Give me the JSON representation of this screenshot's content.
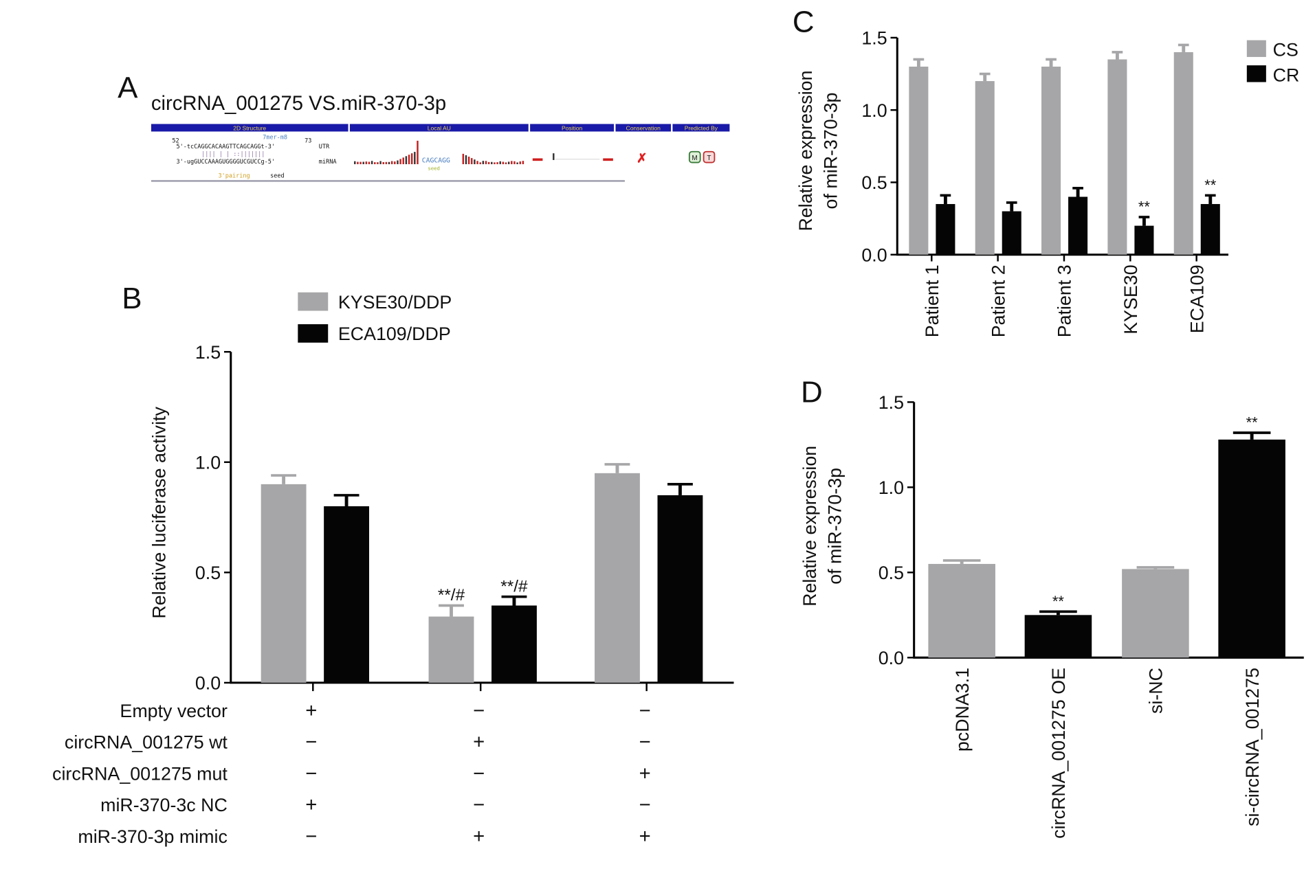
{
  "colors": {
    "gray": "#a6a6a8",
    "black": "#050505",
    "header_blue": "#1a1aa8"
  },
  "panelA": {
    "letter": "A",
    "title": "circRNA_001275 VS.miR-370-3p",
    "headers": [
      "2D Structure",
      "Local AU",
      "Position",
      "Conservation",
      "Predicted By"
    ],
    "start": "52",
    "end": "73",
    "site_type": "7mer-m8",
    "utr_seq": "5'-tcCAGGCACAAGTTCAGCAGGt-3'",
    "utr_label": "UTR",
    "pairing": "||||   |  | ::|||||||",
    "mirna_seq": "3'-ugGUCCAAAGUGGGGUCGUCCg-5'",
    "mirna_label": "miRNA",
    "pairing_label": "3'pairing",
    "seed_label": "seed",
    "au_seq": "CAGCAGG",
    "au_sub": "seed",
    "conservation_mark": "✗",
    "predicted_by": [
      "M",
      "T"
    ]
  },
  "chart_data": [
    {
      "panel": "B",
      "type": "bar",
      "ylabel": "Relative luciferase activity",
      "ylim": [
        0,
        1.5
      ],
      "yticks": [
        "0.0",
        "0.5",
        "1.0",
        "1.5"
      ],
      "legend_placement": "top",
      "series": [
        {
          "name": "KYSE30/DDP",
          "color": "#a6a6a8",
          "values": [
            0.9,
            0.3,
            0.95
          ],
          "errors": [
            0.04,
            0.05,
            0.04
          ],
          "annotations": [
            "",
            "**/#",
            ""
          ]
        },
        {
          "name": "ECA109/DDP",
          "color": "#050505",
          "values": [
            0.8,
            0.35,
            0.85
          ],
          "errors": [
            0.05,
            0.04,
            0.05
          ],
          "annotations": [
            "",
            "**/#",
            ""
          ]
        }
      ],
      "condition_table": {
        "rows": [
          {
            "label": "Empty vector",
            "values": [
              "+",
              "−",
              "−"
            ]
          },
          {
            "label": "circRNA_001275 wt",
            "values": [
              "−",
              "+",
              "−"
            ]
          },
          {
            "label": "circRNA_001275 mut",
            "values": [
              "−",
              "−",
              "+"
            ]
          },
          {
            "label": "miR-370-3c NC",
            "values": [
              "+",
              "−",
              "−"
            ]
          },
          {
            "label": "miR-370-3p mimic",
            "values": [
              "−",
              "+",
              "+"
            ]
          }
        ]
      }
    },
    {
      "panel": "C",
      "type": "bar",
      "ylabel": [
        "Relative expression",
        "of miR-370-3p"
      ],
      "ylim": [
        0,
        1.5
      ],
      "yticks": [
        "0.0",
        "0.5",
        "1.0",
        "1.5"
      ],
      "legend_placement": "top-right",
      "categories": [
        "Patient 1",
        "Patient 2",
        "Patient 3",
        "KYSE30",
        "ECA109"
      ],
      "series": [
        {
          "name": "CS",
          "color": "#a6a6a8",
          "values": [
            1.3,
            1.2,
            1.3,
            1.35,
            1.4
          ],
          "errors": [
            0.05,
            0.05,
            0.05,
            0.05,
            0.05
          ],
          "annotations": [
            "",
            "",
            "",
            "",
            ""
          ]
        },
        {
          "name": "CR",
          "color": "#050505",
          "values": [
            0.35,
            0.3,
            0.4,
            0.2,
            0.35
          ],
          "errors": [
            0.06,
            0.06,
            0.06,
            0.06,
            0.06
          ],
          "annotations": [
            "",
            "",
            "",
            "**",
            "**"
          ]
        }
      ]
    },
    {
      "panel": "D",
      "type": "bar",
      "ylabel": [
        "Relative expression",
        "of miR-370-3p"
      ],
      "ylim": [
        0,
        1.5
      ],
      "yticks": [
        "0.0",
        "0.5",
        "1.0",
        "1.5"
      ],
      "categories": [
        "pcDNA3.1",
        "circRNA_001275 OE",
        "si-NC",
        "si-circRNA_001275"
      ],
      "values": [
        0.55,
        0.25,
        0.52,
        1.28
      ],
      "errors": [
        0.02,
        0.02,
        0.01,
        0.04
      ],
      "colors": [
        "#a6a6a8",
        "#050505",
        "#a6a6a8",
        "#050505"
      ],
      "annotations": [
        "",
        "**",
        "",
        "**"
      ]
    }
  ]
}
